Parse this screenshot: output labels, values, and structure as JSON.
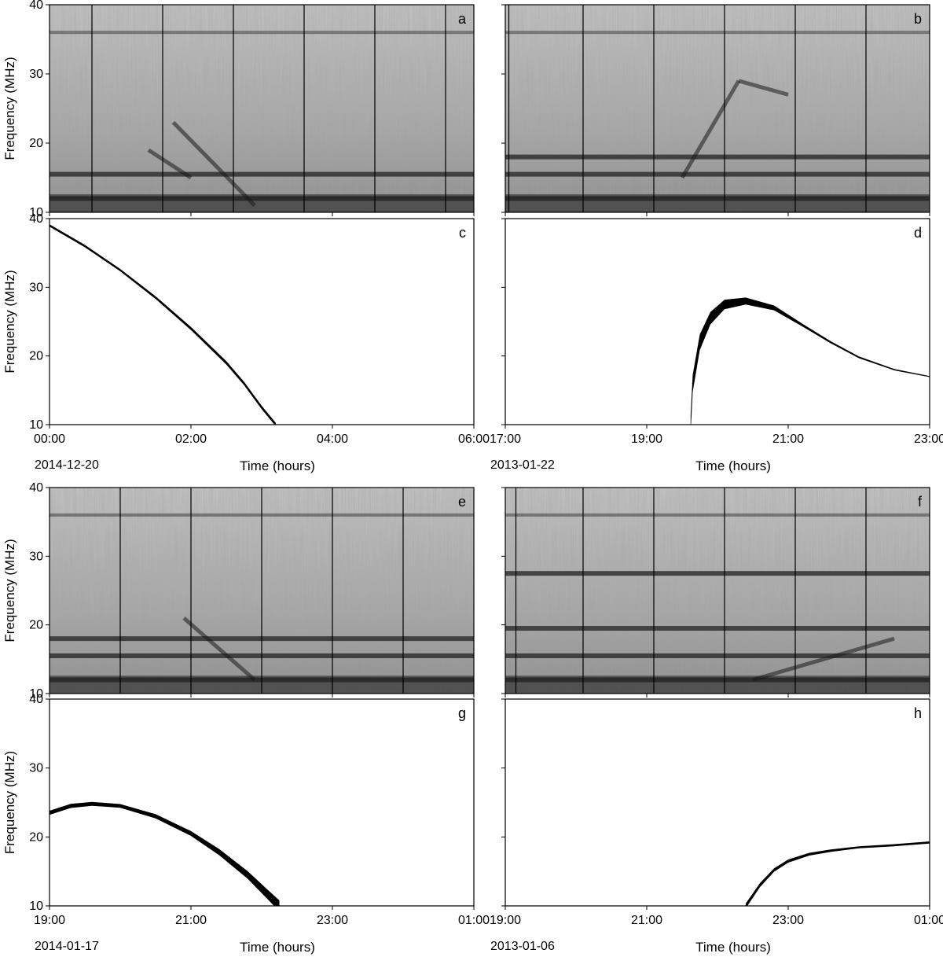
{
  "figure": {
    "colors": {
      "frame": "#000000",
      "background": "#ffffff",
      "spectrogram_base": "#a8a8a8",
      "trace": "#000000"
    },
    "ylabel": "Frequency (MHz)",
    "xlabel": "Time (hours)",
    "yticks": [
      "10",
      "20",
      "30",
      "40"
    ]
  },
  "chart_data": [
    {
      "panel": "a",
      "type": "heatmap",
      "title": "",
      "xlabel": "",
      "ylabel": "Frequency (MHz)",
      "x_unit": "hours",
      "xlim": [
        "00:00",
        "06:00"
      ],
      "ylim": [
        10,
        40
      ],
      "x_ticks": [
        "00:00",
        "02:00",
        "04:00",
        "06:00"
      ],
      "y_ticks": [
        10,
        20,
        30,
        40
      ],
      "date": "",
      "colormap": "grayscale",
      "description_values": {
        "vertical_divider_hours": [
          0.6,
          1.6,
          2.6,
          3.6,
          4.6,
          5.6
        ],
        "band_freqs_mhz": [
          36,
          15.5,
          12
        ],
        "burst_tracks": [
          {
            "t_start_h": 1.75,
            "f_start": 23,
            "t_end_h": 2.9,
            "f_end": 11
          },
          {
            "t_start_h": 1.4,
            "f_start": 19,
            "t_end_h": 2.0,
            "f_end": 15
          }
        ]
      }
    },
    {
      "panel": "b",
      "type": "heatmap",
      "title": "",
      "xlabel": "",
      "ylabel": "",
      "x_unit": "hours",
      "xlim": [
        "17:00",
        "23:00"
      ],
      "ylim": [
        10,
        40
      ],
      "x_ticks": [
        "17:00",
        "19:00",
        "21:00",
        "23:00"
      ],
      "y_ticks": [
        10,
        20,
        30,
        40
      ],
      "date": "",
      "colormap": "grayscale",
      "description_values": {
        "vertical_divider_hours": [
          0.05,
          1.1,
          2.1,
          3.1,
          4.1,
          5.1
        ],
        "band_freqs_mhz": [
          36,
          18,
          15.5,
          12
        ],
        "burst_tracks": [
          {
            "t_start_h": 2.5,
            "f_start": 15,
            "t_end_h": 3.3,
            "f_end": 29
          },
          {
            "t_start_h": 3.3,
            "f_start": 29,
            "t_end_h": 4.0,
            "f_end": 27
          }
        ]
      }
    },
    {
      "panel": "c",
      "type": "line",
      "title": "",
      "xlabel": "Time (hours)",
      "ylabel": "Frequency (MHz)",
      "x_unit": "hours",
      "xlim": [
        "00:00",
        "06:00"
      ],
      "ylim": [
        10,
        40
      ],
      "x_ticks": [
        "00:00",
        "02:00",
        "04:00",
        "06:00"
      ],
      "y_ticks": [
        10,
        20,
        30,
        40
      ],
      "date": "2014-12-20",
      "series": [
        {
          "x_hours": [
            0.0,
            0.5,
            1.0,
            1.5,
            2.0,
            2.5,
            2.75,
            3.0,
            3.2
          ],
          "y_mhz": [
            39,
            36,
            32.5,
            28.5,
            24,
            19,
            16,
            12.5,
            10
          ],
          "thickness_mhz": [
            0.35,
            0.35,
            0.35,
            0.4,
            0.45,
            0.5,
            0.5,
            0.5,
            0.5
          ]
        }
      ]
    },
    {
      "panel": "d",
      "type": "line",
      "title": "",
      "xlabel": "Time (hours)",
      "ylabel": "",
      "x_unit": "hours",
      "xlim": [
        "17:00",
        "23:00"
      ],
      "ylim": [
        10,
        40
      ],
      "x_ticks": [
        "17:00",
        "19:00",
        "21:00",
        "23:00"
      ],
      "y_ticks": [
        10,
        20,
        30,
        40
      ],
      "date": "2013-01-22",
      "series": [
        {
          "x_hours": [
            2.62,
            2.65,
            2.75,
            2.9,
            3.1,
            3.4,
            3.8,
            4.2,
            4.6,
            5.0,
            5.5,
            6.0
          ],
          "y_mhz": [
            10,
            16,
            22,
            25.5,
            27.5,
            28,
            27,
            24.5,
            22,
            19.8,
            18,
            17
          ],
          "thickness_mhz": [
            2.5,
            2.5,
            2.3,
            1.8,
            1.4,
            1.0,
            0.7,
            0.4,
            0.3,
            0.25,
            0.2,
            0.15
          ]
        }
      ]
    },
    {
      "panel": "e",
      "type": "heatmap",
      "title": "",
      "xlabel": "",
      "ylabel": "Frequency (MHz)",
      "x_unit": "hours",
      "xlim": [
        "19:00",
        "01:00"
      ],
      "ylim": [
        10,
        40
      ],
      "x_ticks": [
        "19:00",
        "21:00",
        "23:00",
        "01:00"
      ],
      "y_ticks": [
        10,
        20,
        30,
        40
      ],
      "date": "",
      "colormap": "grayscale",
      "description_values": {
        "vertical_divider_hours": [
          1.0,
          2.0,
          3.0,
          4.0,
          5.0
        ],
        "band_freqs_mhz": [
          36,
          18,
          15.5,
          12
        ],
        "burst_tracks": [
          {
            "t_start_h": 1.9,
            "f_start": 21,
            "t_end_h": 2.9,
            "f_end": 12
          }
        ]
      }
    },
    {
      "panel": "f",
      "type": "heatmap",
      "title": "",
      "xlabel": "",
      "ylabel": "",
      "x_unit": "hours",
      "xlim": [
        "19:00",
        "01:00"
      ],
      "ylim": [
        10,
        40
      ],
      "x_ticks": [
        "19:00",
        "21:00",
        "23:00",
        "01:00"
      ],
      "y_ticks": [
        10,
        20,
        30,
        40
      ],
      "date": "",
      "colormap": "grayscale",
      "description_values": {
        "vertical_divider_hours": [
          0.15,
          1.1,
          2.1,
          3.1,
          4.1,
          5.1
        ],
        "band_freqs_mhz": [
          36,
          27.5,
          19.5,
          15.5,
          12
        ],
        "burst_tracks": [
          {
            "t_start_h": 3.5,
            "f_start": 12,
            "t_end_h": 5.5,
            "f_end": 18
          }
        ]
      }
    },
    {
      "panel": "g",
      "type": "line",
      "title": "",
      "xlabel": "Time (hours)",
      "ylabel": "Frequency (MHz)",
      "x_unit": "hours",
      "xlim": [
        "19:00",
        "01:00"
      ],
      "ylim": [
        10,
        40
      ],
      "x_ticks": [
        "19:00",
        "21:00",
        "23:00",
        "01:00"
      ],
      "y_ticks": [
        10,
        20,
        30,
        40
      ],
      "date": "2014-01-17",
      "series": [
        {
          "x_hours": [
            0.0,
            0.3,
            0.6,
            1.0,
            1.5,
            2.0,
            2.4,
            2.8,
            3.1,
            3.25
          ],
          "y_mhz": [
            23.5,
            24.5,
            24.8,
            24.5,
            23,
            20.5,
            17.8,
            14.5,
            11.5,
            10
          ],
          "thickness_mhz": [
            0.6,
            0.6,
            0.55,
            0.55,
            0.6,
            0.7,
            0.9,
            1.1,
            1.4,
            1.6
          ]
        }
      ]
    },
    {
      "panel": "h",
      "type": "line",
      "title": "",
      "xlabel": "Time (hours)",
      "ylabel": "",
      "x_unit": "hours",
      "xlim": [
        "19:00",
        "01:00"
      ],
      "ylim": [
        10,
        40
      ],
      "x_ticks": [
        "19:00",
        "21:00",
        "23:00",
        "01:00"
      ],
      "y_ticks": [
        10,
        20,
        30,
        40
      ],
      "date": "2013-01-06",
      "series": [
        {
          "x_hours": [
            3.4,
            3.6,
            3.8,
            4.0,
            4.3,
            4.6,
            5.0,
            5.5,
            6.0
          ],
          "y_mhz": [
            10,
            13,
            15.2,
            16.5,
            17.5,
            18,
            18.5,
            18.8,
            19.2
          ],
          "thickness_mhz": [
            0.7,
            0.6,
            0.5,
            0.45,
            0.4,
            0.35,
            0.3,
            0.3,
            0.3
          ]
        }
      ]
    }
  ]
}
